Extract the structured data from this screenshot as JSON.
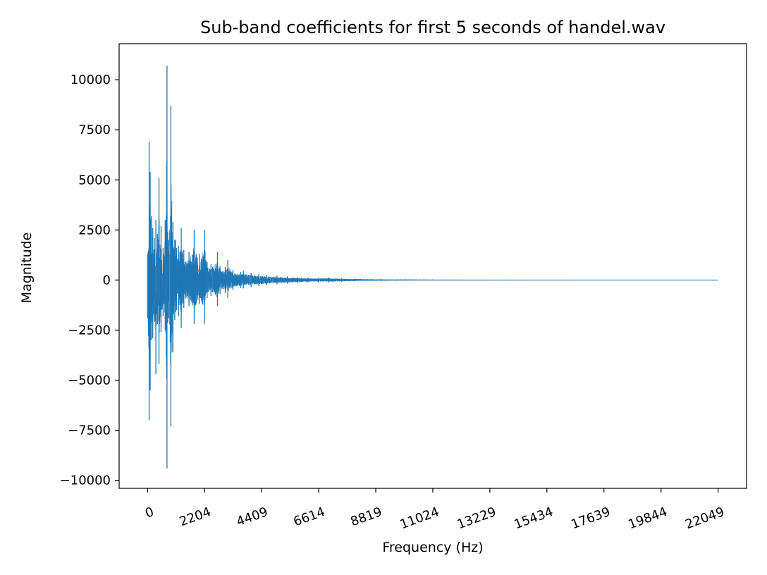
{
  "chart_data": {
    "type": "line",
    "title": "Sub-band coefficients for first 5 seconds of handel.wav",
    "xlabel": "Frequency (Hz)",
    "ylabel": "Magnitude",
    "xlim": [
      -1100,
      23150
    ],
    "ylim": [
      -10400,
      11800
    ],
    "x_ticks": [
      0,
      2204,
      4409,
      6614,
      8819,
      11024,
      13229,
      15434,
      17639,
      19844,
      22049
    ],
    "x_tick_labels": [
      "0",
      "2204",
      "4409",
      "6614",
      "8819",
      "11024",
      "13229",
      "15434",
      "17639",
      "19844",
      "22049"
    ],
    "y_ticks": [
      10000,
      7500,
      5000,
      2500,
      0,
      -2500,
      -5000,
      -7500,
      -10000
    ],
    "y_tick_labels": [
      "10000",
      "7500",
      "5000",
      "2500",
      "0",
      "−2500",
      "−5000",
      "−7500",
      "−10000"
    ],
    "grid": false,
    "legend": "none",
    "colors": {
      "series": "#1f77b4",
      "axes": "#000000",
      "background": "#ffffff"
    },
    "series": [
      {
        "values_note": "",
        "x": [
          0,
          60,
          100,
          150,
          200,
          260,
          320,
          380,
          440,
          520,
          600,
          680,
          750,
          780,
          820,
          900,
          980,
          1050,
          1080,
          1120,
          1200,
          1300,
          1400,
          1600,
          1800,
          2000,
          2200,
          2300,
          2450,
          2700,
          2800,
          3000,
          3100,
          3300,
          3600,
          3700,
          4000,
          4300,
          4600,
          5000,
          5400,
          5800,
          6200,
          6600,
          7000,
          7500,
          8000,
          9000,
          10000,
          11000,
          12000,
          13000,
          14000,
          15000,
          16000,
          17000,
          18000,
          19000,
          20000,
          21000,
          22049
        ],
        "peak_values": [
          1300,
          6900,
          5400,
          3200,
          2600,
          2100,
          3000,
          2300,
          5100,
          2700,
          1600,
          3000,
          10700,
          2400,
          2000,
          8700,
          2900,
          2000,
          2000,
          1600,
          1700,
          2600,
          1500,
          1400,
          2500,
          1300,
          2500,
          900,
          800,
          1400,
          700,
          650,
          1000,
          500,
          400,
          450,
          350,
          300,
          260,
          220,
          180,
          150,
          120,
          110,
          130,
          90,
          70,
          45,
          35,
          28,
          22,
          18,
          15,
          12,
          10,
          8,
          7,
          6,
          5,
          4,
          3
        ],
        "trough_values": [
          -1900,
          -7000,
          -5500,
          -3000,
          -2900,
          -2100,
          -4700,
          -2200,
          -4200,
          -2600,
          -1800,
          -2500,
          -9400,
          -2100,
          -1900,
          -7300,
          -3600,
          -2000,
          -1600,
          -1500,
          -1800,
          -2400,
          -1400,
          -1300,
          -2200,
          -1200,
          -2200,
          -900,
          -800,
          -1300,
          -700,
          -650,
          -900,
          -500,
          -400,
          -420,
          -350,
          -300,
          -260,
          -220,
          -180,
          -150,
          -120,
          -110,
          -120,
          -90,
          -70,
          -45,
          -35,
          -28,
          -22,
          -18,
          -15,
          -12,
          -10,
          -8,
          -7,
          -6,
          -5,
          -4,
          -3
        ]
      }
    ]
  }
}
